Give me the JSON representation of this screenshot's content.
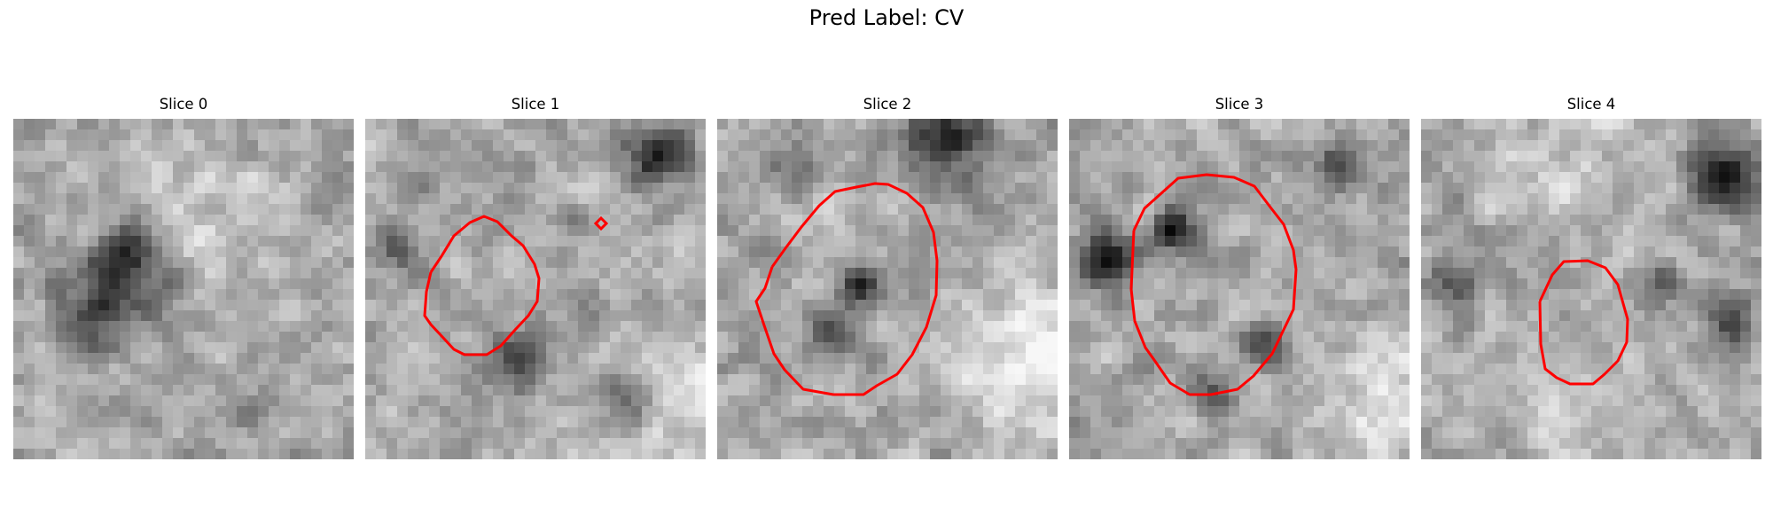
{
  "figure": {
    "title": "Pred Label: CV",
    "contour_color": "#ff0000"
  },
  "slices": [
    {
      "title": "Slice 0",
      "seed": 11,
      "has_contour": false,
      "dark_regions": "lower-left"
    },
    {
      "title": "Slice 1",
      "seed": 23,
      "has_contour": true,
      "dark_regions": "upper-right, lower-center"
    },
    {
      "title": "Slice 2",
      "seed": 37,
      "has_contour": true,
      "dark_regions": "top, center"
    },
    {
      "title": "Slice 3",
      "seed": 53,
      "has_contour": true,
      "dark_regions": "left, upper-right"
    },
    {
      "title": "Slice 4",
      "seed": 71,
      "has_contour": true,
      "dark_regions": "right, left"
    }
  ]
}
